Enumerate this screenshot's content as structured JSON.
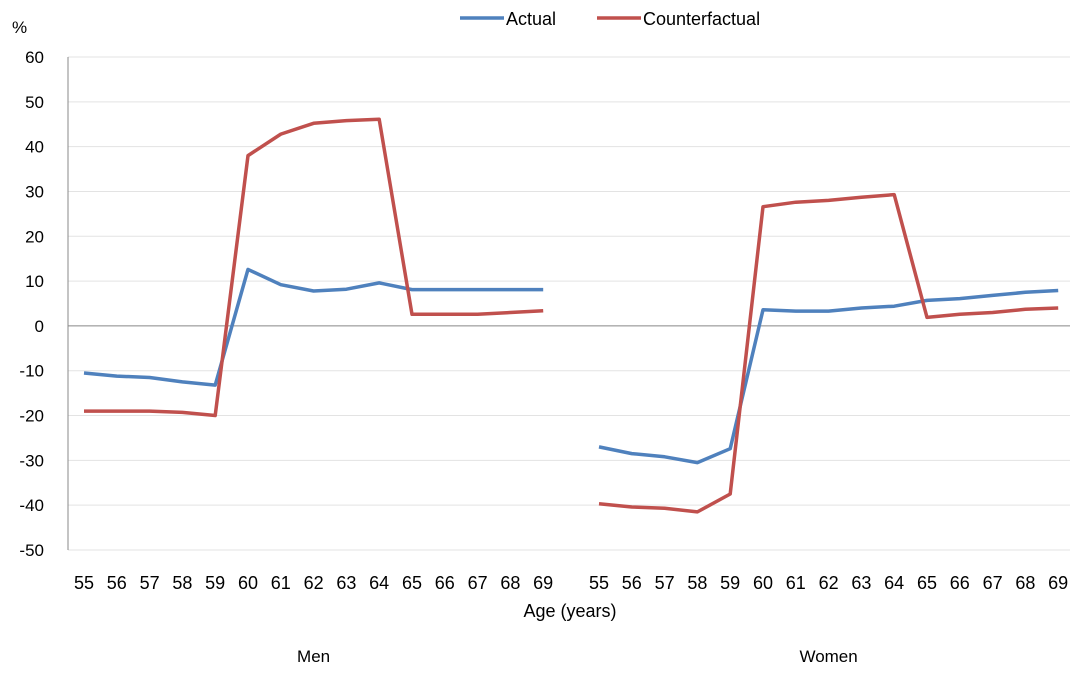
{
  "chart_data": {
    "type": "line",
    "ylabel": "%",
    "xlabel": "Age (years)",
    "ylim": [
      -50,
      60
    ],
    "yticks": [
      60,
      50,
      40,
      30,
      20,
      10,
      0,
      -10,
      -20,
      -30,
      -40,
      -50
    ],
    "grid": true,
    "legend_position": "top",
    "groups": [
      "Men",
      "Women"
    ],
    "categories": [
      "55",
      "56",
      "57",
      "58",
      "59",
      "60",
      "61",
      "62",
      "63",
      "64",
      "65",
      "66",
      "67",
      "68",
      "69"
    ],
    "series": [
      {
        "name": "Actual",
        "color": "#4f81bd",
        "values": {
          "Men": [
            -10.5,
            -11.2,
            -11.5,
            -12.5,
            -13.2,
            12.6,
            9.2,
            7.8,
            8.2,
            9.6,
            8.1,
            8.1,
            8.1,
            8.1,
            8.1
          ],
          "Women": [
            -27.0,
            -28.5,
            -29.2,
            -30.5,
            -27.4,
            3.6,
            3.3,
            3.3,
            4.0,
            4.4,
            5.7,
            6.1,
            6.8,
            7.5,
            7.9
          ]
        }
      },
      {
        "name": "Counterfactual",
        "color": "#c0504d",
        "values": {
          "Men": [
            -19.0,
            -19.0,
            -19.0,
            -19.3,
            -20.0,
            38.0,
            42.8,
            45.2,
            45.8,
            46.1,
            2.6,
            2.6,
            2.6,
            3.0,
            3.4
          ],
          "Women": [
            -39.7,
            -40.4,
            -40.7,
            -41.5,
            -37.5,
            26.6,
            27.6,
            28.0,
            28.7,
            29.3,
            1.9,
            2.6,
            3.0,
            3.7,
            4.0
          ]
        }
      }
    ]
  }
}
